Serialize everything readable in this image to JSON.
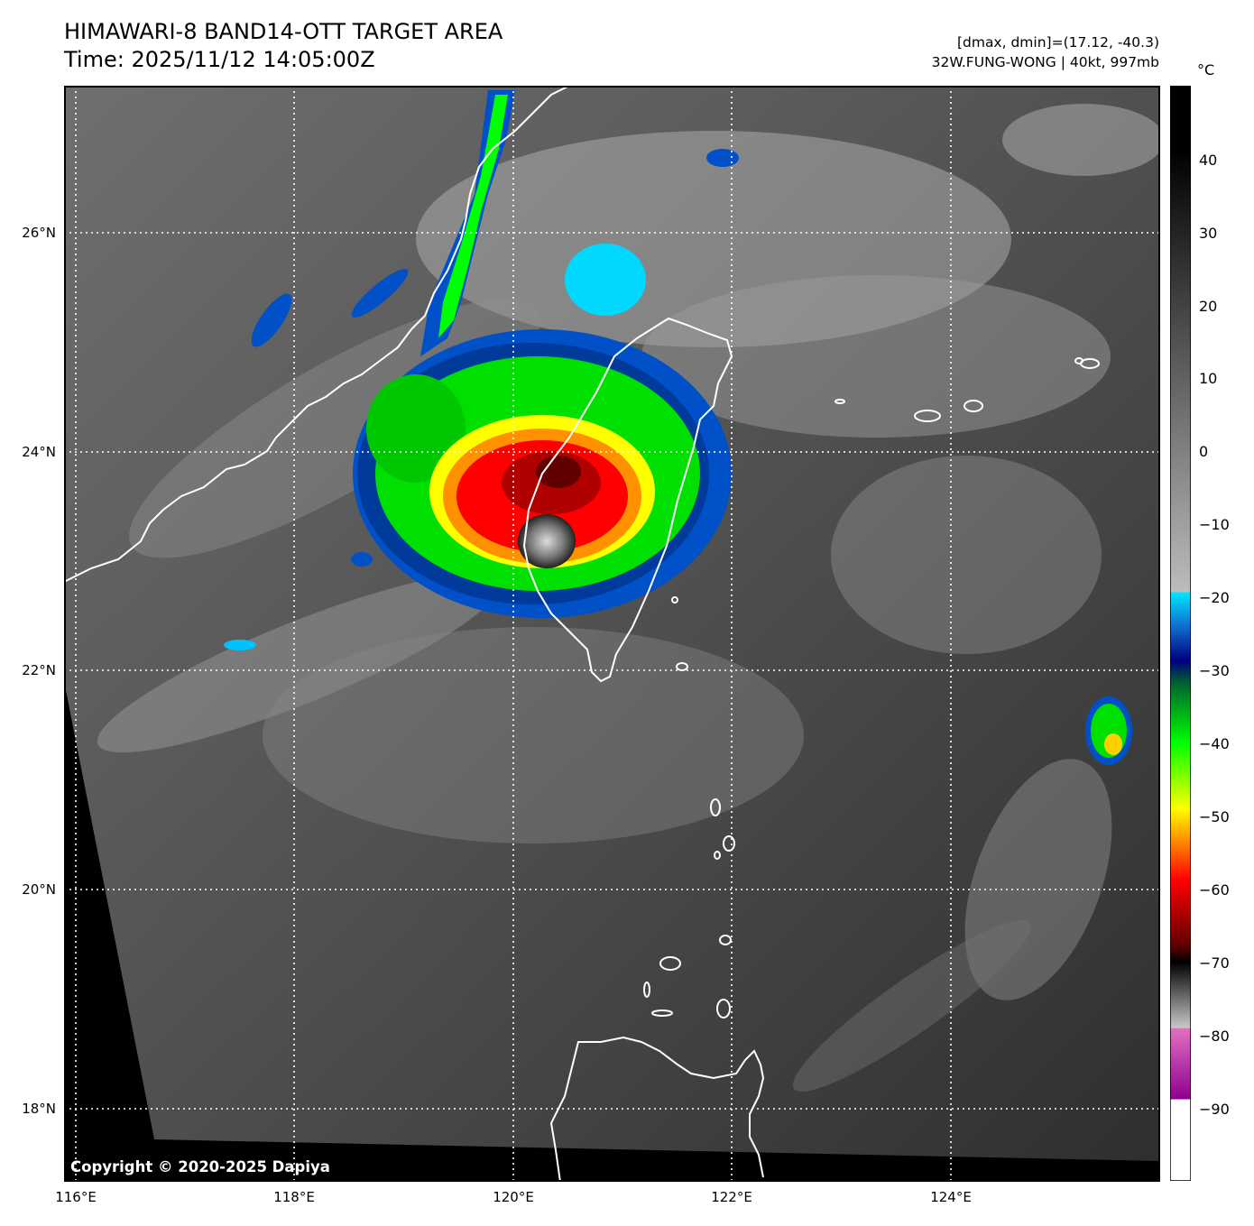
{
  "header": {
    "title_line1": "HIMAWARI-8 BAND14-OTT TARGET AREA",
    "title_line2": "Time: 2025/11/12 14:05:00Z",
    "range_text": "[dmax, dmin]=(17.12, -40.3)",
    "storm_text": "32W.FUNG-WONG | 40kt, 997mb"
  },
  "map": {
    "lat_labels": [
      "26°N",
      "24°N",
      "22°N",
      "20°N",
      "18°N"
    ],
    "lon_labels": [
      "116°E",
      "118°E",
      "120°E",
      "122°E",
      "124°E"
    ],
    "copyright": "Copyright © 2020-2025 Dapiya"
  },
  "colorbar": {
    "unit": "°C",
    "tick_labels": [
      "40",
      "30",
      "20",
      "10",
      "0",
      "−10",
      "−20",
      "−30",
      "−40",
      "−50",
      "−60",
      "−70",
      "−80",
      "−90"
    ],
    "colors": {
      "cyan": "#00e5ff",
      "blue": "#0050c8",
      "navy": "#000080",
      "green": "#00ff00",
      "yellow": "#ffff00",
      "red": "#ff0000",
      "darkred": "#600000",
      "magenta": "#e070c0",
      "purple": "#900090"
    }
  }
}
